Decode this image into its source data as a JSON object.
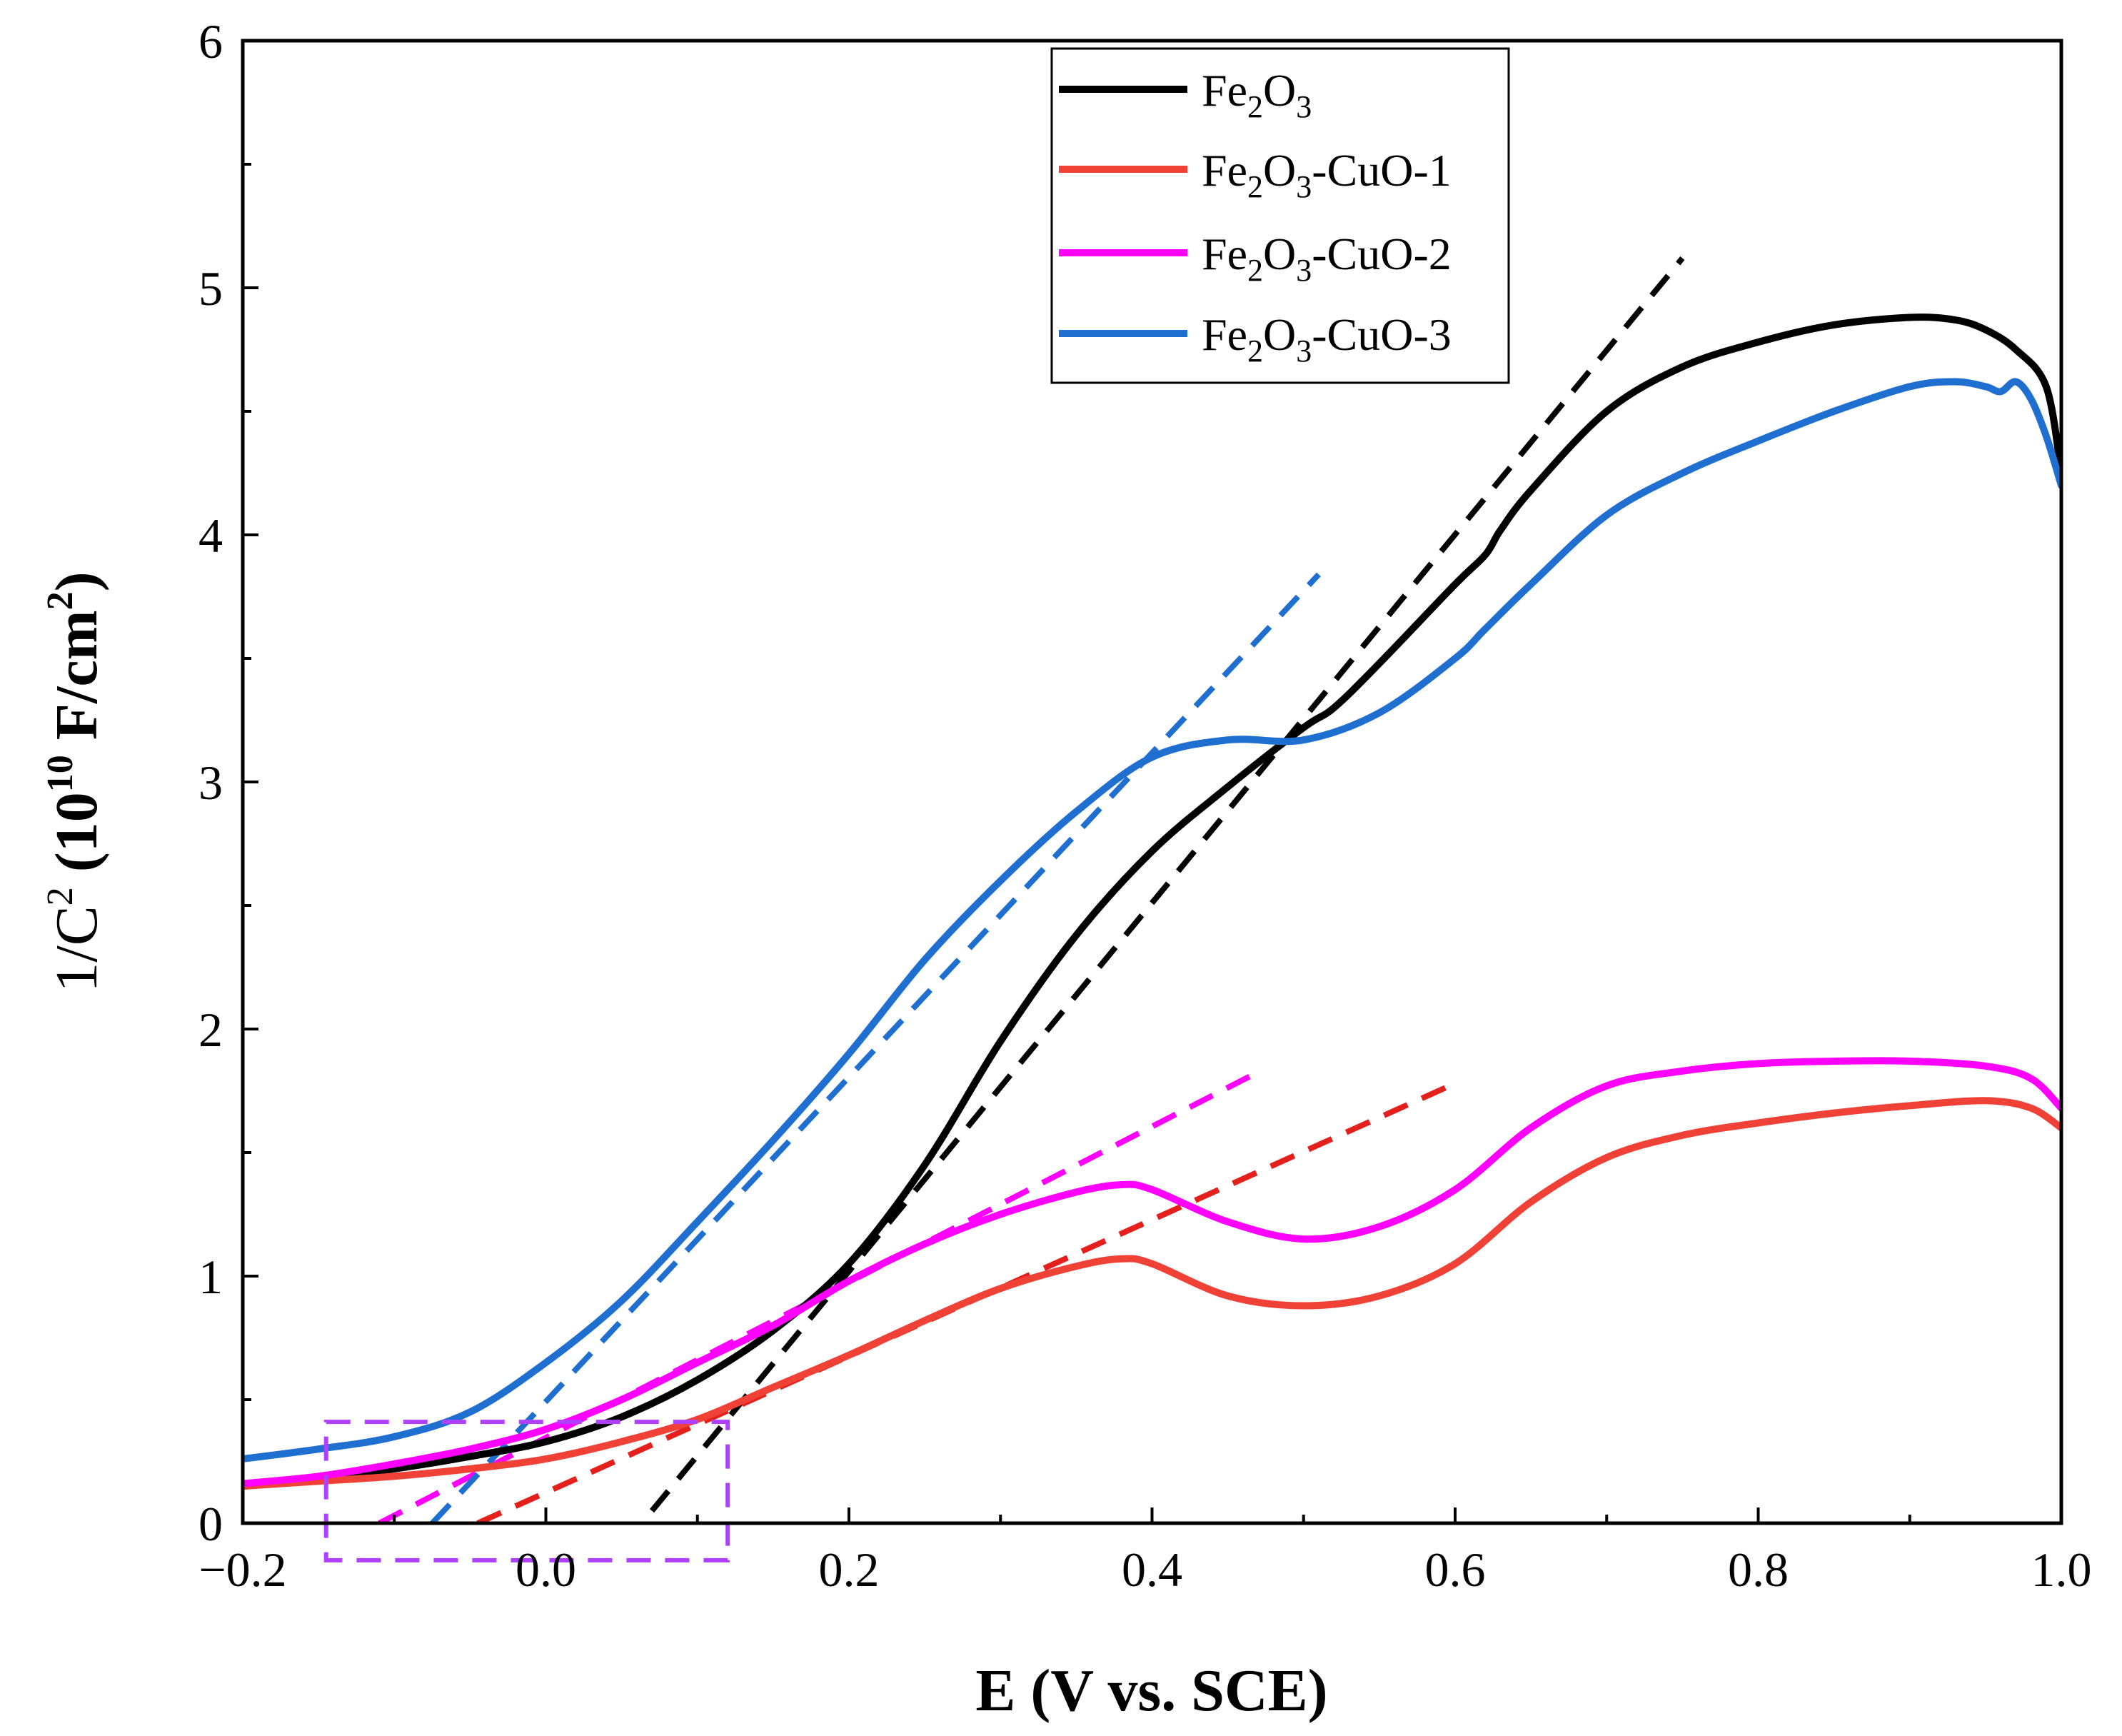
{
  "chart_data": {
    "type": "line",
    "xlabel": "E (V vs. SCE)",
    "ylabel_parts": [
      "1/C",
      "2",
      " (10",
      "10",
      " F/cm",
      "2",
      ")"
    ],
    "xlim": [
      -0.2,
      1.0
    ],
    "ylim": [
      0,
      6
    ],
    "xticks": [
      -0.2,
      0.0,
      0.2,
      0.4,
      0.6,
      0.8,
      1.0
    ],
    "xtick_labels": [
      "−0.2",
      "0.0",
      "0.2",
      "0.4",
      "0.6",
      "0.8",
      "1.0"
    ],
    "yticks": [
      0,
      1,
      2,
      3,
      4,
      5,
      6
    ],
    "ytick_labels": [
      "0",
      "1",
      "2",
      "3",
      "4",
      "5",
      "6"
    ],
    "legend_position": "top-right",
    "series": [
      {
        "name": "Fe2O3",
        "legend_parts": [
          "Fe",
          "2",
          "O",
          "3",
          ""
        ],
        "color": "#000000",
        "x": [
          -0.2,
          -0.15,
          -0.1,
          -0.05,
          0.0,
          0.05,
          0.1,
          0.15,
          0.2,
          0.25,
          0.3,
          0.35,
          0.4,
          0.45,
          0.5,
          0.52,
          0.55,
          0.6,
          0.62,
          0.63,
          0.65,
          0.7,
          0.75,
          0.8,
          0.85,
          0.9,
          0.93,
          0.95,
          0.97,
          0.99,
          1.0
        ],
        "y": [
          0.15,
          0.18,
          0.22,
          0.27,
          0.33,
          0.43,
          0.58,
          0.78,
          1.05,
          1.45,
          1.95,
          2.38,
          2.72,
          2.98,
          3.22,
          3.3,
          3.48,
          3.8,
          3.92,
          4.02,
          4.18,
          4.5,
          4.68,
          4.78,
          4.85,
          4.88,
          4.87,
          4.83,
          4.75,
          4.6,
          4.25
        ]
      },
      {
        "name": "Fe2O3-CuO-1",
        "legend_parts": [
          "Fe",
          "2",
          "O",
          "3",
          "-CuO-1"
        ],
        "color": "#ef4136",
        "x": [
          -0.2,
          -0.15,
          -0.1,
          -0.05,
          0.0,
          0.05,
          0.1,
          0.15,
          0.2,
          0.25,
          0.3,
          0.35,
          0.38,
          0.4,
          0.45,
          0.5,
          0.55,
          0.6,
          0.65,
          0.7,
          0.75,
          0.8,
          0.85,
          0.9,
          0.95,
          0.98,
          1.0
        ],
        "y": [
          0.15,
          0.17,
          0.19,
          0.22,
          0.26,
          0.33,
          0.42,
          0.55,
          0.68,
          0.82,
          0.95,
          1.04,
          1.07,
          1.05,
          0.92,
          0.88,
          0.92,
          1.05,
          1.3,
          1.48,
          1.57,
          1.62,
          1.66,
          1.69,
          1.71,
          1.68,
          1.6
        ]
      },
      {
        "name": "Fe2O3-CuO-2",
        "legend_parts": [
          "Fe",
          "2",
          "O",
          "3",
          "-CuO-2"
        ],
        "color": "#ff00ff",
        "x": [
          -0.2,
          -0.15,
          -0.1,
          -0.05,
          0.0,
          0.05,
          0.1,
          0.15,
          0.2,
          0.25,
          0.3,
          0.35,
          0.38,
          0.4,
          0.45,
          0.5,
          0.55,
          0.6,
          0.65,
          0.7,
          0.75,
          0.8,
          0.85,
          0.9,
          0.95,
          0.98,
          1.0
        ],
        "y": [
          0.16,
          0.19,
          0.24,
          0.3,
          0.38,
          0.5,
          0.65,
          0.8,
          0.98,
          1.13,
          1.25,
          1.34,
          1.37,
          1.35,
          1.22,
          1.15,
          1.2,
          1.35,
          1.6,
          1.77,
          1.83,
          1.86,
          1.87,
          1.87,
          1.85,
          1.8,
          1.68
        ]
      },
      {
        "name": "Fe2O3-CuO-3",
        "legend_parts": [
          "Fe",
          "2",
          "O",
          "3",
          "-CuO-3"
        ],
        "color": "#1f6fd1",
        "x": [
          -0.2,
          -0.15,
          -0.1,
          -0.05,
          0.0,
          0.05,
          0.1,
          0.15,
          0.2,
          0.25,
          0.3,
          0.35,
          0.4,
          0.45,
          0.5,
          0.55,
          0.6,
          0.62,
          0.65,
          0.7,
          0.75,
          0.8,
          0.85,
          0.9,
          0.93,
          0.95,
          0.96,
          0.97,
          0.98,
          0.99,
          1.0
        ],
        "y": [
          0.26,
          0.3,
          0.35,
          0.45,
          0.65,
          0.9,
          1.22,
          1.55,
          1.9,
          2.28,
          2.6,
          2.88,
          3.1,
          3.17,
          3.17,
          3.28,
          3.5,
          3.62,
          3.8,
          4.08,
          4.25,
          4.38,
          4.5,
          4.6,
          4.62,
          4.6,
          4.58,
          4.62,
          4.55,
          4.4,
          4.2
        ]
      }
    ],
    "fit_lines": [
      {
        "series": "Fe2O3",
        "color": "#000000",
        "x": [
          0.07,
          0.75
        ],
        "y": [
          0.05,
          5.12
        ]
      },
      {
        "series": "Fe2O3-CuO-1",
        "color": "#e3201b",
        "x": [
          -0.045,
          0.6
        ],
        "y": [
          0.0,
          1.78
        ]
      },
      {
        "series": "Fe2O3-CuO-2",
        "color": "#ff00ff",
        "x": [
          -0.11,
          0.465
        ],
        "y": [
          0.0,
          1.81
        ]
      },
      {
        "series": "Fe2O3-CuO-3",
        "color": "#1f6fd1",
        "x": [
          -0.075,
          0.51
        ],
        "y": [
          0.0,
          3.84
        ]
      }
    ],
    "highlight_box": {
      "color": "#b040ff",
      "x": [
        -0.145,
        0.12
      ],
      "y": [
        -0.15,
        0.41
      ]
    }
  }
}
